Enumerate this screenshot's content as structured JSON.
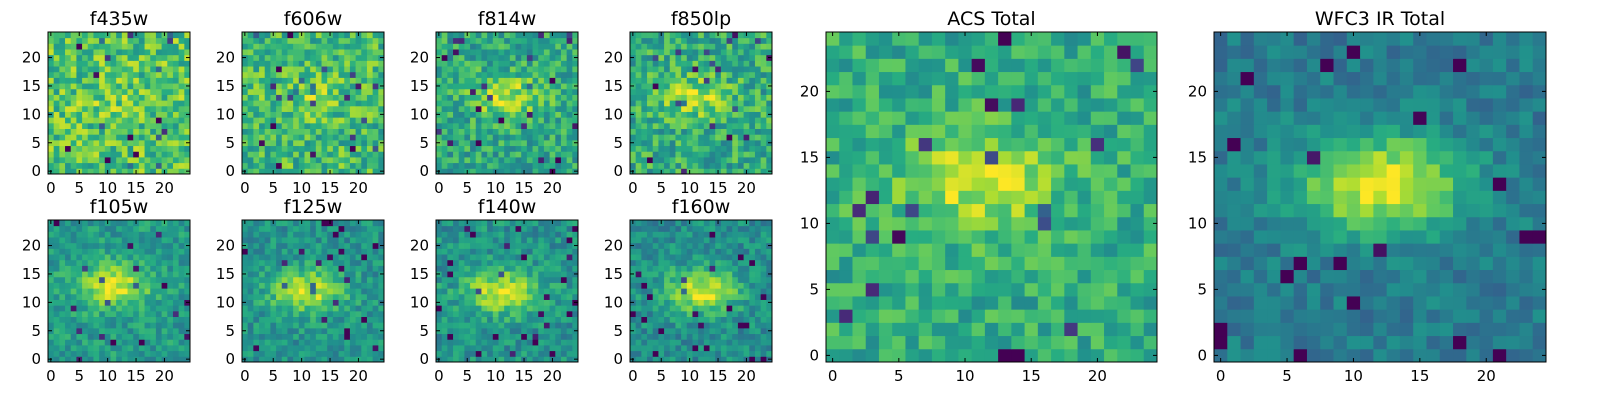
{
  "chart_data": {
    "type": "heatmap",
    "colormap": "viridis",
    "grid_size": 25,
    "x_ticks": [
      0,
      5,
      10,
      15,
      20
    ],
    "y_ticks": [
      0,
      5,
      10,
      15,
      20
    ],
    "axis_range": [
      -0.5,
      24.5
    ],
    "panels": [
      {
        "id": "f435w",
        "title": "f435w",
        "xlim": [
          -0.5,
          24.5
        ],
        "ylim": [
          -0.5,
          24.5
        ],
        "center": [
          12,
          12
        ],
        "source_strength": 0.06,
        "background": 0.72,
        "noise": 0.42,
        "seed": 11
      },
      {
        "id": "f606w",
        "title": "f606w",
        "xlim": [
          -0.5,
          24.5
        ],
        "ylim": [
          -0.5,
          24.5
        ],
        "center": [
          12,
          13
        ],
        "source_strength": 0.12,
        "background": 0.68,
        "noise": 0.4,
        "seed": 23
      },
      {
        "id": "f814w",
        "title": "f814w",
        "xlim": [
          -0.5,
          24.5
        ],
        "ylim": [
          -0.5,
          24.5
        ],
        "center": [
          12,
          13
        ],
        "source_strength": 0.3,
        "background": 0.6,
        "noise": 0.36,
        "seed": 37
      },
      {
        "id": "f850lp",
        "title": "f850lp",
        "xlim": [
          -0.5,
          24.5
        ],
        "ylim": [
          -0.5,
          24.5
        ],
        "center": [
          11,
          13
        ],
        "source_strength": 0.24,
        "background": 0.62,
        "noise": 0.38,
        "seed": 41
      },
      {
        "id": "f105w",
        "title": "f105w",
        "xlim": [
          -0.5,
          24.5
        ],
        "ylim": [
          -0.5,
          24.5
        ],
        "center": [
          11,
          13
        ],
        "source_strength": 0.4,
        "background": 0.55,
        "noise": 0.26,
        "seed": 53
      },
      {
        "id": "f125w",
        "title": "f125w",
        "xlim": [
          -0.5,
          24.5
        ],
        "ylim": [
          -0.5,
          24.5
        ],
        "center": [
          11,
          12
        ],
        "source_strength": 0.42,
        "background": 0.52,
        "noise": 0.26,
        "seed": 61
      },
      {
        "id": "f140w",
        "title": "f140w",
        "xlim": [
          -0.5,
          24.5
        ],
        "ylim": [
          -0.5,
          24.5
        ],
        "center": [
          11,
          12
        ],
        "source_strength": 0.42,
        "background": 0.52,
        "noise": 0.28,
        "seed": 71
      },
      {
        "id": "f160w",
        "title": "f160w",
        "xlim": [
          -0.5,
          24.5
        ],
        "ylim": [
          -0.5,
          24.5
        ],
        "center": [
          12,
          12
        ],
        "source_strength": 0.44,
        "background": 0.5,
        "noise": 0.27,
        "seed": 83
      },
      {
        "id": "acs-total",
        "title": "ACS Total",
        "xlim": [
          -0.5,
          24.5
        ],
        "ylim": [
          -0.5,
          24.5
        ],
        "center": [
          11,
          13
        ],
        "source_strength": 0.3,
        "background": 0.62,
        "noise": 0.3,
        "seed": 97
      },
      {
        "id": "wfc3-ir-total",
        "title": "WFC3 IR Total",
        "xlim": [
          -0.5,
          24.5
        ],
        "ylim": [
          -0.5,
          24.5
        ],
        "center": [
          12,
          13
        ],
        "source_strength": 0.55,
        "background": 0.42,
        "noise": 0.2,
        "seed": 101
      }
    ]
  }
}
